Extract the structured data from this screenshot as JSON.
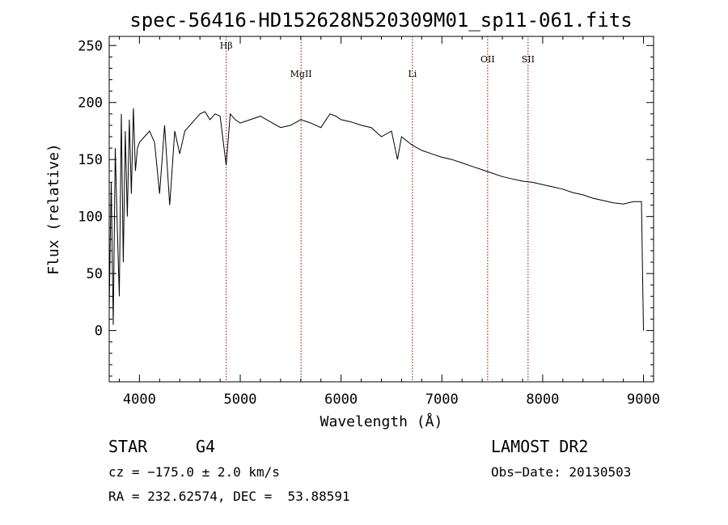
{
  "chart_data": {
    "type": "line",
    "title": "spec-56416-HD152628N520309M01_sp11-061.fits",
    "xlabel": "Wavelength (Å)",
    "ylabel": "Flux (relative)",
    "xlim": [
      3700,
      9100
    ],
    "ylim": [
      -45,
      258
    ],
    "xticks": [
      "4000",
      "5000",
      "6000",
      "7000",
      "8000",
      "9000"
    ],
    "yticks": [
      "0",
      "50",
      "100",
      "150",
      "200",
      "250"
    ],
    "grid": false,
    "series": [
      {
        "x": [
          3700,
          3720,
          3740,
          3760,
          3780,
          3800,
          3820,
          3840,
          3860,
          3880,
          3900,
          3920,
          3940,
          3960,
          3980,
          4000,
          4050,
          4100,
          4150,
          4200,
          4250,
          4300,
          4350,
          4400,
          4450,
          4500,
          4550,
          4600,
          4650,
          4700,
          4750,
          4800,
          4860,
          4900,
          4950,
          5000,
          5100,
          5200,
          5300,
          5400,
          5500,
          5600,
          5700,
          5800,
          5890,
          5950,
          6000,
          6100,
          6200,
          6300,
          6400,
          6500,
          6560,
          6600,
          6700,
          6800,
          6900,
          7000,
          7100,
          7200,
          7300,
          7400,
          7500,
          7600,
          7700,
          7800,
          7900,
          8000,
          8100,
          8200,
          8300,
          8400,
          8500,
          8600,
          8700,
          8800,
          8900,
          8980,
          9000
        ],
        "y": [
          20,
          130,
          5,
          160,
          90,
          30,
          190,
          60,
          175,
          100,
          185,
          120,
          195,
          140,
          160,
          165,
          170,
          175,
          165,
          120,
          180,
          110,
          175,
          155,
          175,
          180,
          185,
          190,
          192,
          185,
          190,
          188,
          145,
          190,
          185,
          182,
          185,
          188,
          183,
          178,
          180,
          185,
          182,
          178,
          190,
          188,
          185,
          183,
          180,
          178,
          170,
          175,
          150,
          170,
          163,
          158,
          155,
          152,
          150,
          147,
          144,
          141,
          138,
          135,
          133,
          131,
          130,
          128,
          126,
          124,
          121,
          119,
          116,
          114,
          112,
          111,
          113,
          113,
          0
        ]
      }
    ],
    "spectral_lines": [
      {
        "label": "Hβ",
        "x": 4861
      },
      {
        "label": "MgII",
        "x": 5603
      },
      {
        "label": "Li",
        "x": 6708
      },
      {
        "label": "OII",
        "x": 7454
      },
      {
        "label": "SII",
        "x": 7855
      }
    ],
    "line_color": "#8b0000"
  },
  "info": {
    "object_type": "STAR",
    "subclass": "G4",
    "survey": "LAMOST DR2",
    "cz": "cz = −175.0 ± 2.0 km/s",
    "obs_date": "Obs−Date: 20130503",
    "coords": "RA = 232.62574, DEC =  53.88591"
  }
}
